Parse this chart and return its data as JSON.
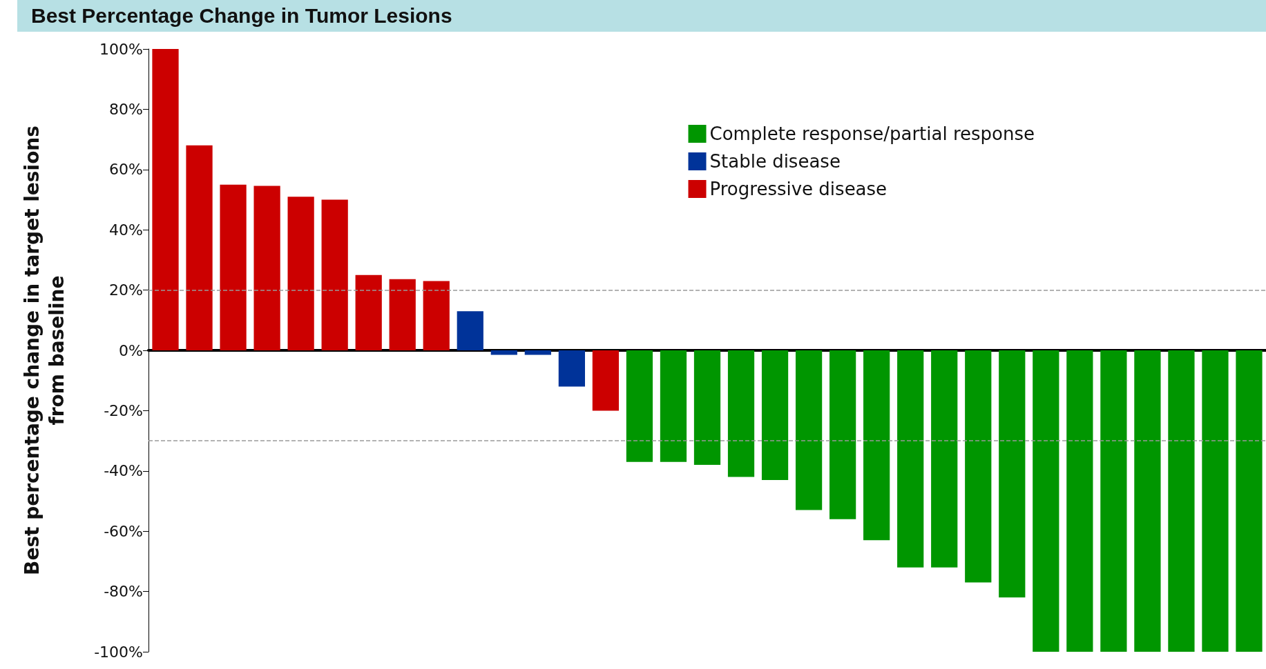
{
  "chart_data": {
    "type": "bar",
    "title": "Best Percentage Change in Tumor Lesions",
    "ylabel": "Best percentage change in target lesions\nfrom baseline",
    "categories": [
      null,
      null,
      null,
      null,
      null,
      null,
      null,
      null,
      null,
      null,
      null,
      null,
      null,
      null,
      null,
      null,
      null,
      null,
      null,
      null,
      null,
      null,
      null,
      null,
      null,
      null,
      null,
      null,
      null,
      null,
      null,
      null,
      null
    ],
    "series": [
      {
        "name": "Complete response/partial response",
        "color": "#009600",
        "values": [
          null,
          null,
          null,
          null,
          null,
          null,
          null,
          null,
          null,
          null,
          null,
          null,
          null,
          null,
          -37,
          -37,
          -38,
          -42,
          -43,
          -53,
          -56,
          -63,
          -72,
          -72,
          -77,
          -82,
          -100,
          -100,
          -100,
          -100,
          -100,
          -100,
          -100
        ]
      },
      {
        "name": "Stable disease",
        "color": "#003399",
        "values": [
          null,
          null,
          null,
          null,
          null,
          null,
          null,
          null,
          null,
          13,
          -1.5,
          -1.5,
          -12,
          null,
          null,
          null,
          null,
          null,
          null,
          null,
          null,
          null,
          null,
          null,
          null,
          null,
          null,
          null,
          null,
          null,
          null,
          null,
          null
        ]
      },
      {
        "name": "Progressive disease",
        "color": "#cc0000",
        "values": [
          100,
          68,
          55,
          54.6,
          51,
          50,
          25,
          23.6,
          23,
          null,
          null,
          null,
          null,
          -20,
          null,
          null,
          null,
          null,
          null,
          null,
          null,
          null,
          null,
          null,
          null,
          null,
          null,
          null,
          null,
          null,
          null,
          null,
          null
        ]
      }
    ],
    "ylim": [
      -100,
      100
    ],
    "yticks": [
      {
        "value": -100,
        "label": "-100%"
      },
      {
        "value": -80,
        "label": "-80%"
      },
      {
        "value": -60,
        "label": "-60%"
      },
      {
        "value": -40,
        "label": "-40%"
      },
      {
        "value": -20,
        "label": "-20%"
      },
      {
        "value": 0,
        "label": "0%"
      },
      {
        "value": 20,
        "label": "20%"
      },
      {
        "value": 40,
        "label": "40%"
      },
      {
        "value": 60,
        "label": "60%"
      },
      {
        "value": 80,
        "label": "80%"
      },
      {
        "value": 100,
        "label": "100%"
      }
    ],
    "ref_lines": [
      {
        "axis": "y",
        "value": 20,
        "color": "#999999",
        "line_style": "dashed"
      },
      {
        "axis": "y",
        "value": -30,
        "color": "#999999",
        "line_style": "dashed"
      }
    ],
    "legend": "top right",
    "grid": false
  }
}
